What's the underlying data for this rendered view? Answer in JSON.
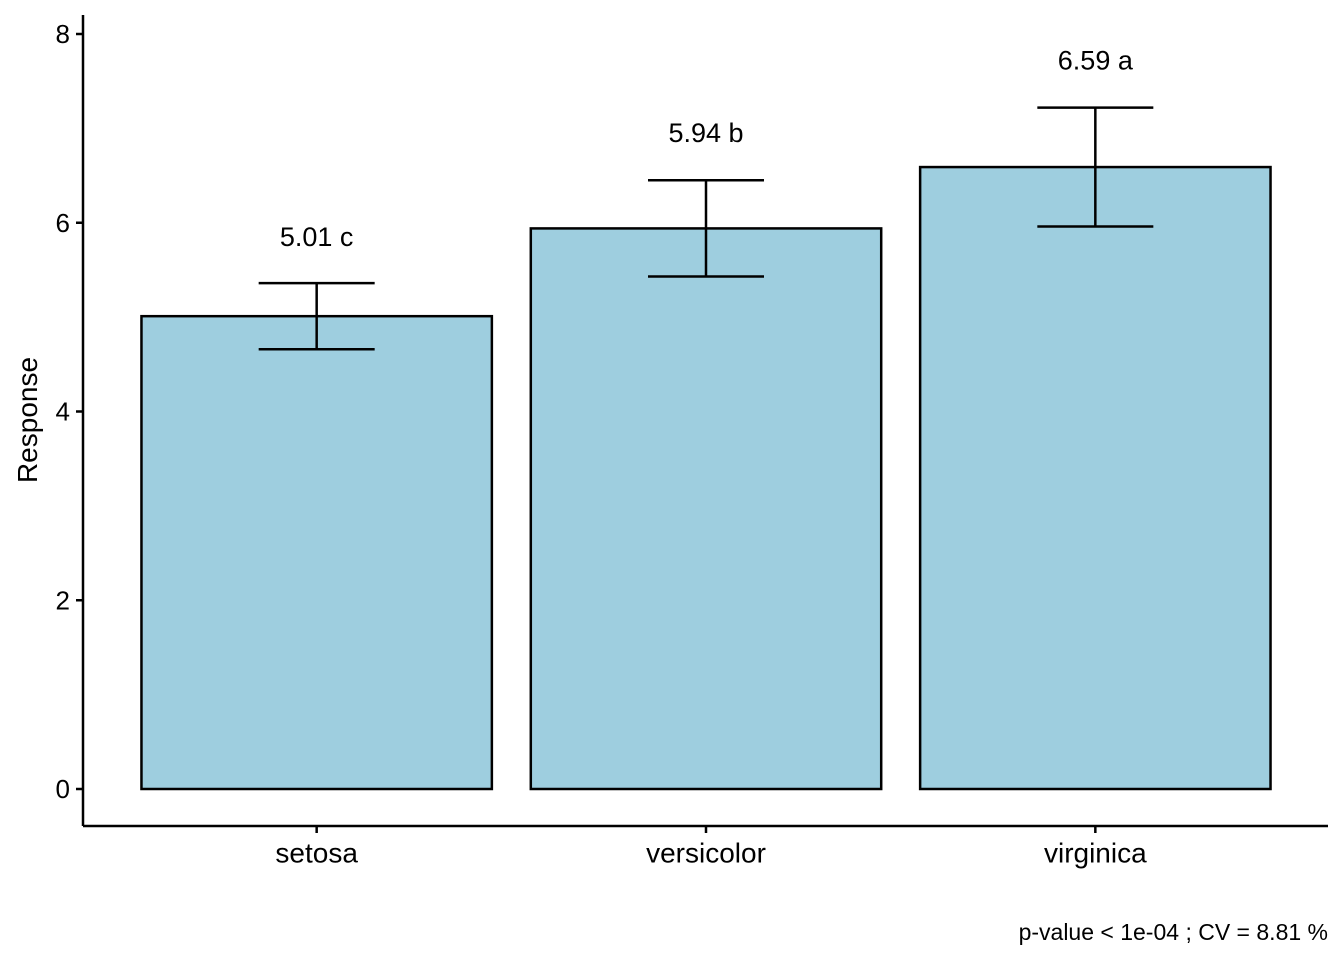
{
  "chart_data": {
    "type": "bar",
    "title": "",
    "xlabel": "",
    "ylabel": "Response",
    "ylim": [
      0,
      8
    ],
    "yticks": [
      0,
      2,
      4,
      6,
      8
    ],
    "categories": [
      "setosa",
      "versicolor",
      "virginica"
    ],
    "values": [
      5.01,
      5.94,
      6.59
    ],
    "error_low": [
      4.66,
      5.43,
      5.96
    ],
    "error_high": [
      5.36,
      6.45,
      7.22
    ],
    "labels": [
      "5.01 c",
      "5.94 b",
      "6.59 a"
    ],
    "label_y": [
      5.85,
      6.95,
      7.72
    ],
    "bar_color": "#9ECEDF",
    "caption": "p-value < 1e-04 ; CV =  8.81 %"
  }
}
